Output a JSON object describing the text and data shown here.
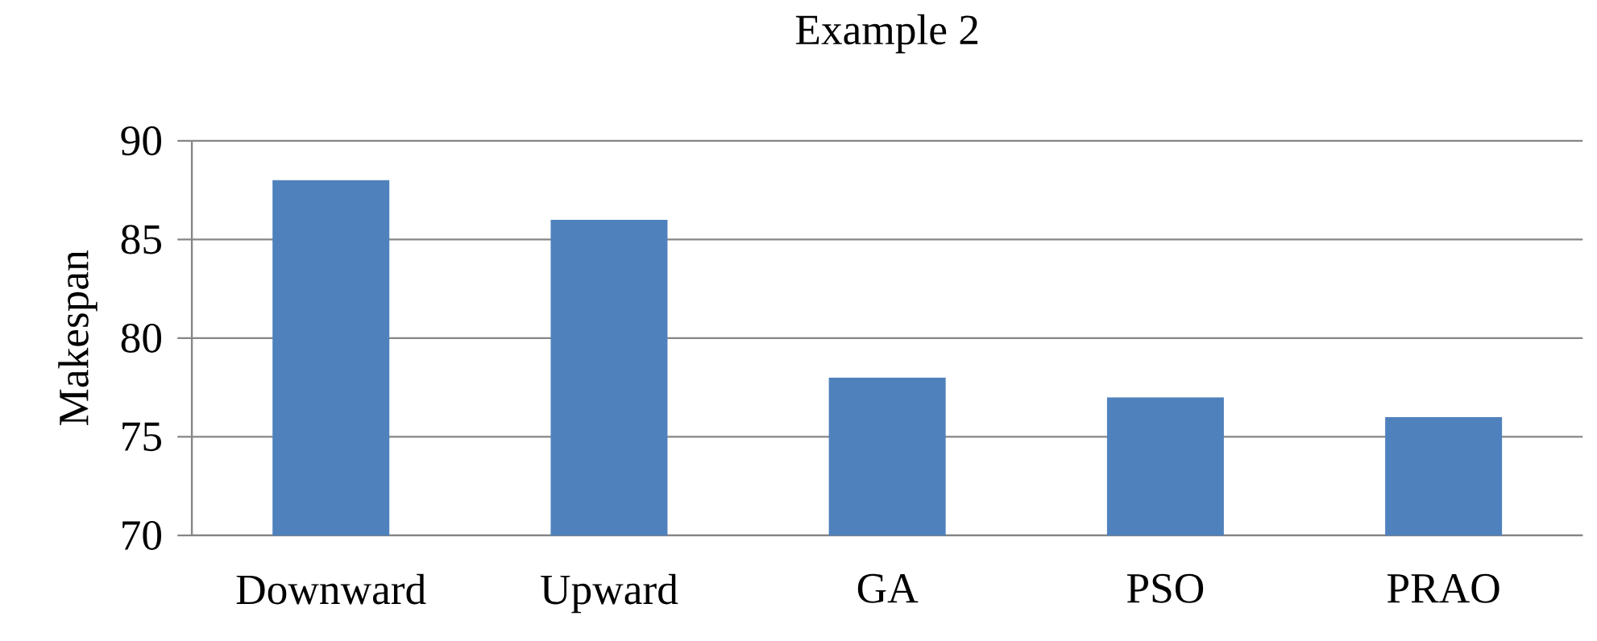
{
  "chart_data": {
    "type": "bar",
    "title": "Example 2",
    "ylabel": "Makespan",
    "categories": [
      "Downward",
      "Upward",
      "GA",
      "PSO",
      "PRAO"
    ],
    "values": [
      88,
      86,
      78,
      77,
      76
    ],
    "color": "#4f81bd",
    "ylim": [
      70,
      90
    ],
    "yticks": [
      70,
      75,
      80,
      85,
      90
    ],
    "grid": "y"
  }
}
